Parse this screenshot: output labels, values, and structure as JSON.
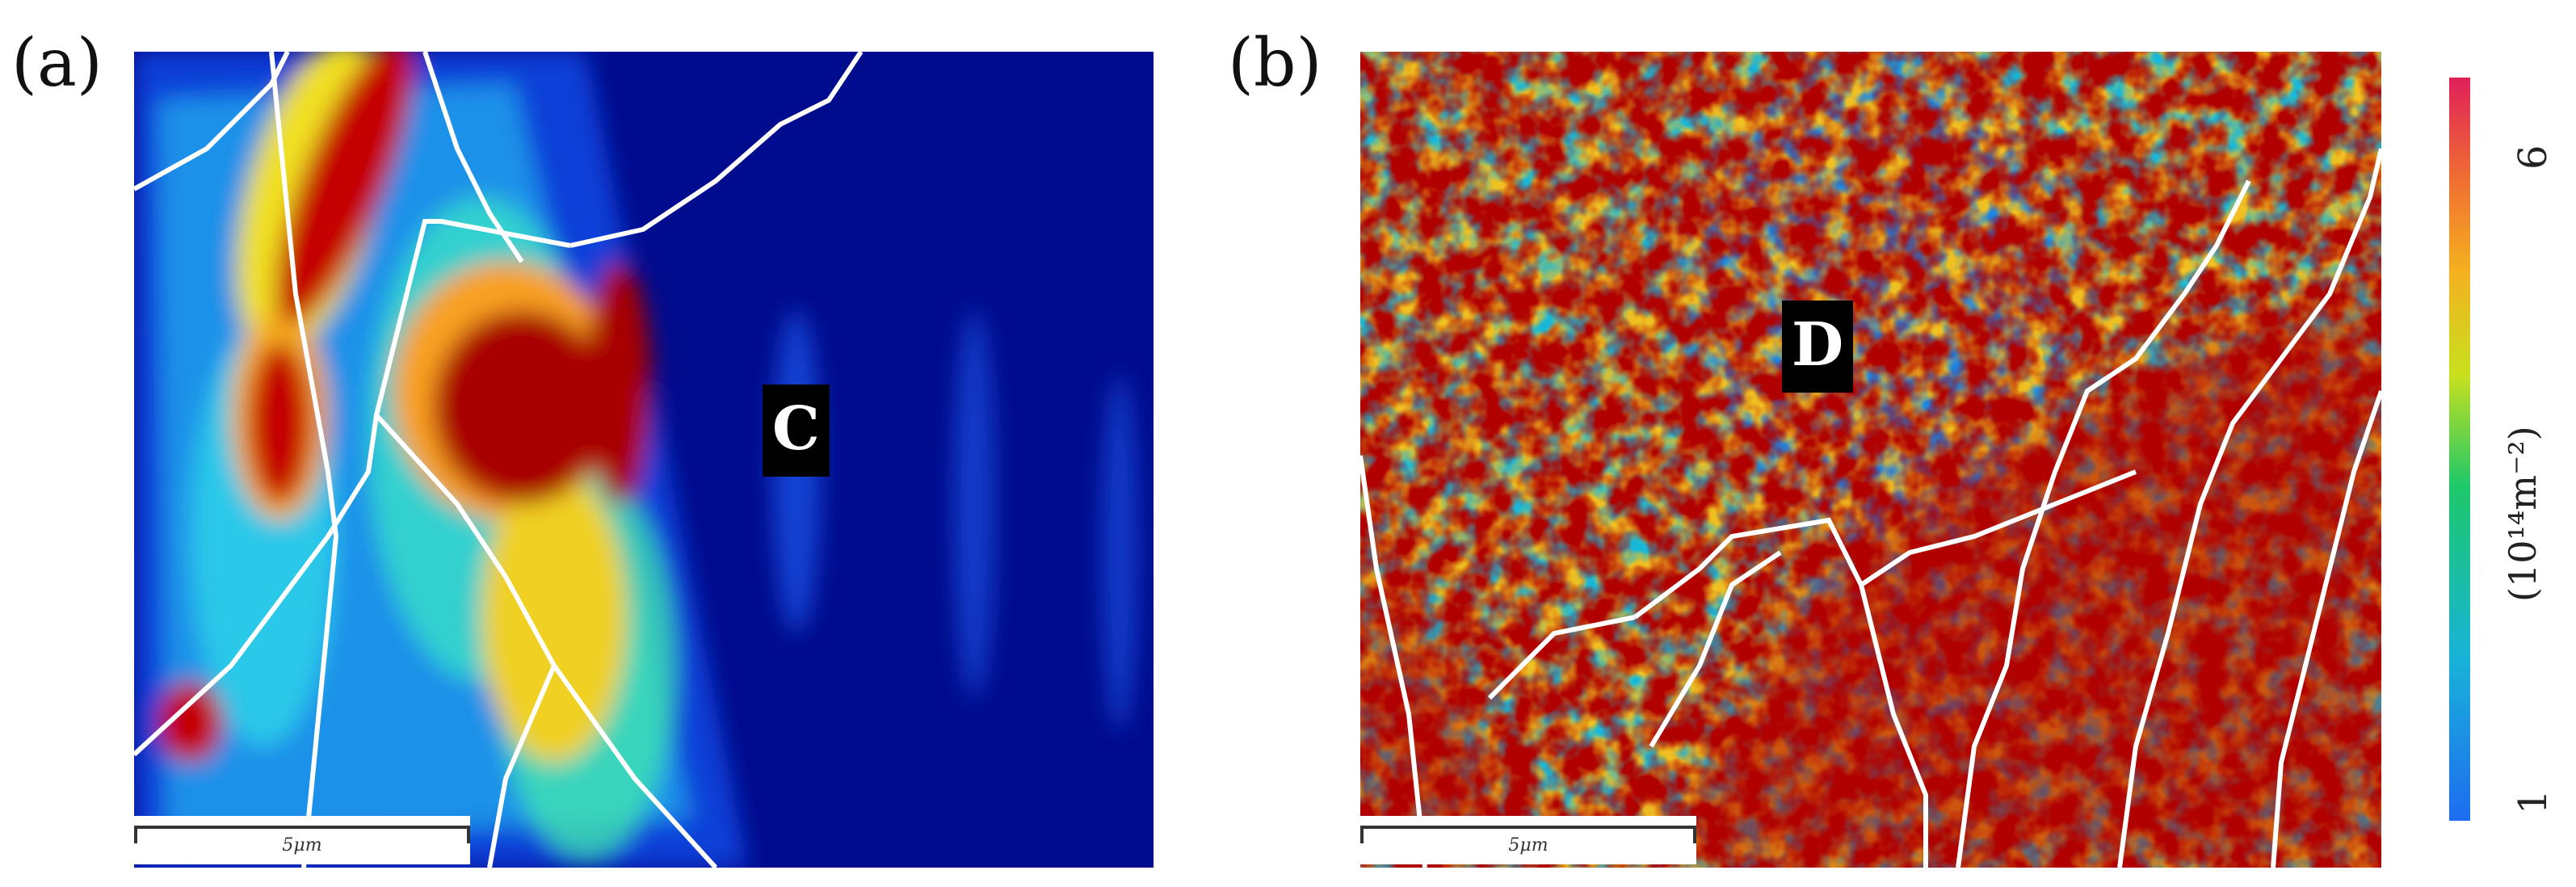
{
  "panel_a": {
    "label": "(a)",
    "region": "C",
    "scalebar": "5μm"
  },
  "panel_b": {
    "label": "(b)",
    "region": "D",
    "scalebar": "5μm"
  },
  "colorbar": {
    "max_label": "6",
    "min_label": "1",
    "unit": "(10¹⁴m⁻²)",
    "colors": [
      "#1e6cf0",
      "#19b3d8",
      "#1ec86a",
      "#c8e01e",
      "#f5b020",
      "#f07030",
      "#e0205a"
    ]
  }
}
